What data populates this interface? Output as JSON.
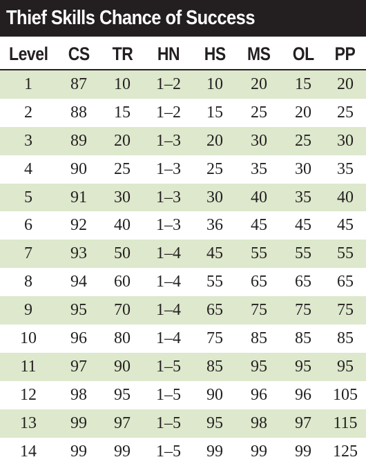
{
  "title": "Thief Skills Chance of Success",
  "colors": {
    "title_background": "#231f20",
    "title_text": "#ffffff",
    "row_shade": "#dde8cc",
    "text": "#231f20"
  },
  "table": {
    "headers": [
      "Level",
      "CS",
      "TR",
      "HN",
      "HS",
      "MS",
      "OL",
      "PP"
    ],
    "rows": [
      [
        "1",
        "87",
        "10",
        "1–2",
        "10",
        "20",
        "15",
        "20"
      ],
      [
        "2",
        "88",
        "15",
        "1–2",
        "15",
        "25",
        "20",
        "25"
      ],
      [
        "3",
        "89",
        "20",
        "1–3",
        "20",
        "30",
        "25",
        "30"
      ],
      [
        "4",
        "90",
        "25",
        "1–3",
        "25",
        "35",
        "30",
        "35"
      ],
      [
        "5",
        "91",
        "30",
        "1–3",
        "30",
        "40",
        "35",
        "40"
      ],
      [
        "6",
        "92",
        "40",
        "1–3",
        "36",
        "45",
        "45",
        "45"
      ],
      [
        "7",
        "93",
        "50",
        "1–4",
        "45",
        "55",
        "55",
        "55"
      ],
      [
        "8",
        "94",
        "60",
        "1–4",
        "55",
        "65",
        "65",
        "65"
      ],
      [
        "9",
        "95",
        "70",
        "1–4",
        "65",
        "75",
        "75",
        "75"
      ],
      [
        "10",
        "96",
        "80",
        "1–4",
        "75",
        "85",
        "85",
        "85"
      ],
      [
        "11",
        "97",
        "90",
        "1–5",
        "85",
        "95",
        "95",
        "95"
      ],
      [
        "12",
        "98",
        "95",
        "1–5",
        "90",
        "96",
        "96",
        "105"
      ],
      [
        "13",
        "99",
        "97",
        "1–5",
        "95",
        "98",
        "97",
        "115"
      ],
      [
        "14",
        "99",
        "99",
        "1–5",
        "99",
        "99",
        "99",
        "125"
      ]
    ]
  }
}
